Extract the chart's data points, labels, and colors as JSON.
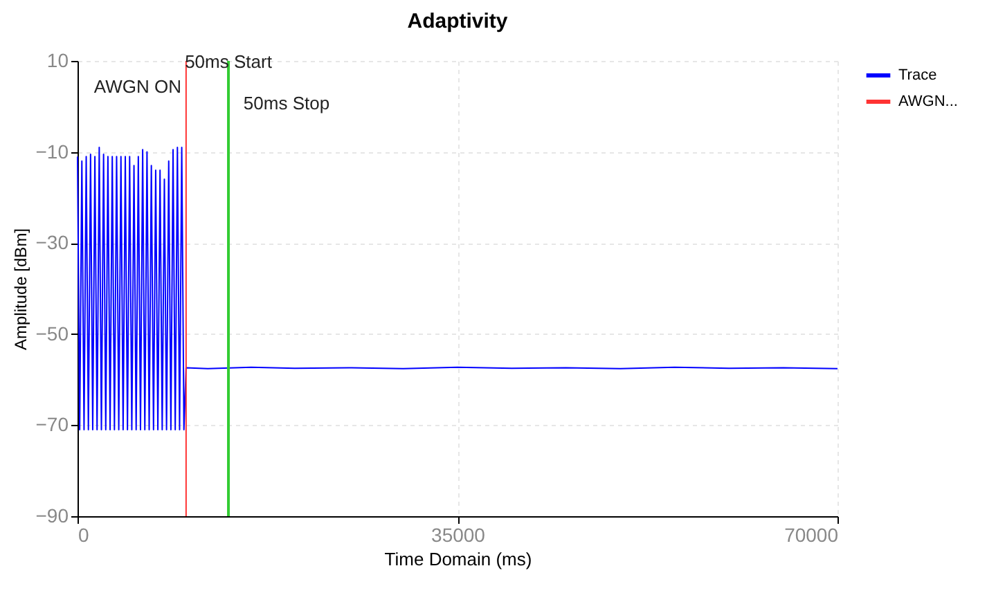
{
  "chart_data": {
    "type": "line",
    "title": "Adaptivity",
    "xlabel": "Time Domain (ms)",
    "ylabel": "Amplitude [dBm]",
    "xlim": [
      0,
      70000
    ],
    "xticks": [
      0,
      35000,
      70000
    ],
    "ylim": [
      -90,
      10
    ],
    "yticks": [
      -90,
      -70,
      -50,
      -30,
      -10,
      10
    ],
    "grid": true,
    "legend": "top right",
    "line_style": "solid",
    "series": [
      {
        "name": "Trace",
        "color": "#0000ff",
        "x": [
          0,
          200,
          400,
          600,
          800,
          1000,
          1200,
          1400,
          1600,
          1800,
          2000,
          2200,
          2400,
          2600,
          2800,
          3000,
          3200,
          3400,
          3600,
          3800,
          4000,
          4200,
          4400,
          4600,
          4800,
          5000,
          5200,
          5400,
          5600,
          5800,
          6000,
          6200,
          6400,
          6600,
          6800,
          7000,
          7200,
          7400,
          7600,
          7800,
          8000,
          8200,
          8400,
          8600,
          8800,
          9000,
          9200,
          9400,
          9600,
          9800,
          10000,
          12000,
          16000,
          20000,
          25000,
          30000,
          35000,
          40000,
          45000,
          50000,
          55000,
          60000,
          65000,
          70000
        ],
        "values": [
          -11,
          -71,
          -12,
          -71,
          -11,
          -71,
          -10.5,
          -71,
          -11,
          -71,
          -9,
          -71,
          -10.5,
          -71,
          -11,
          -71,
          -11,
          -71,
          -11,
          -71,
          -11,
          -71,
          -11,
          -71,
          -11,
          -71,
          -13,
          -71,
          -11,
          -71,
          -9.5,
          -71,
          -10,
          -71,
          -13,
          -71,
          -14,
          -71,
          -14,
          -71,
          -16,
          -71,
          -12,
          -71,
          -9.5,
          -71,
          -9,
          -71,
          -9,
          -71,
          -57.4,
          -57.6,
          -57.3,
          -57.5,
          -57.4,
          -57.6,
          -57.3,
          -57.5,
          -57.4,
          -57.6,
          -57.3,
          -57.5,
          -57.4,
          -57.6
        ]
      },
      {
        "name": "AWGN...",
        "color": "#ff3333",
        "x": [
          10000,
          10000
        ],
        "values": [
          -90,
          10
        ]
      }
    ],
    "ref_lines": [
      {
        "axis": "x",
        "value": 13900,
        "color": "#33cc33"
      }
    ],
    "annotations": [
      "50ms Start",
      "AWGN ON",
      "50ms Stop"
    ]
  }
}
